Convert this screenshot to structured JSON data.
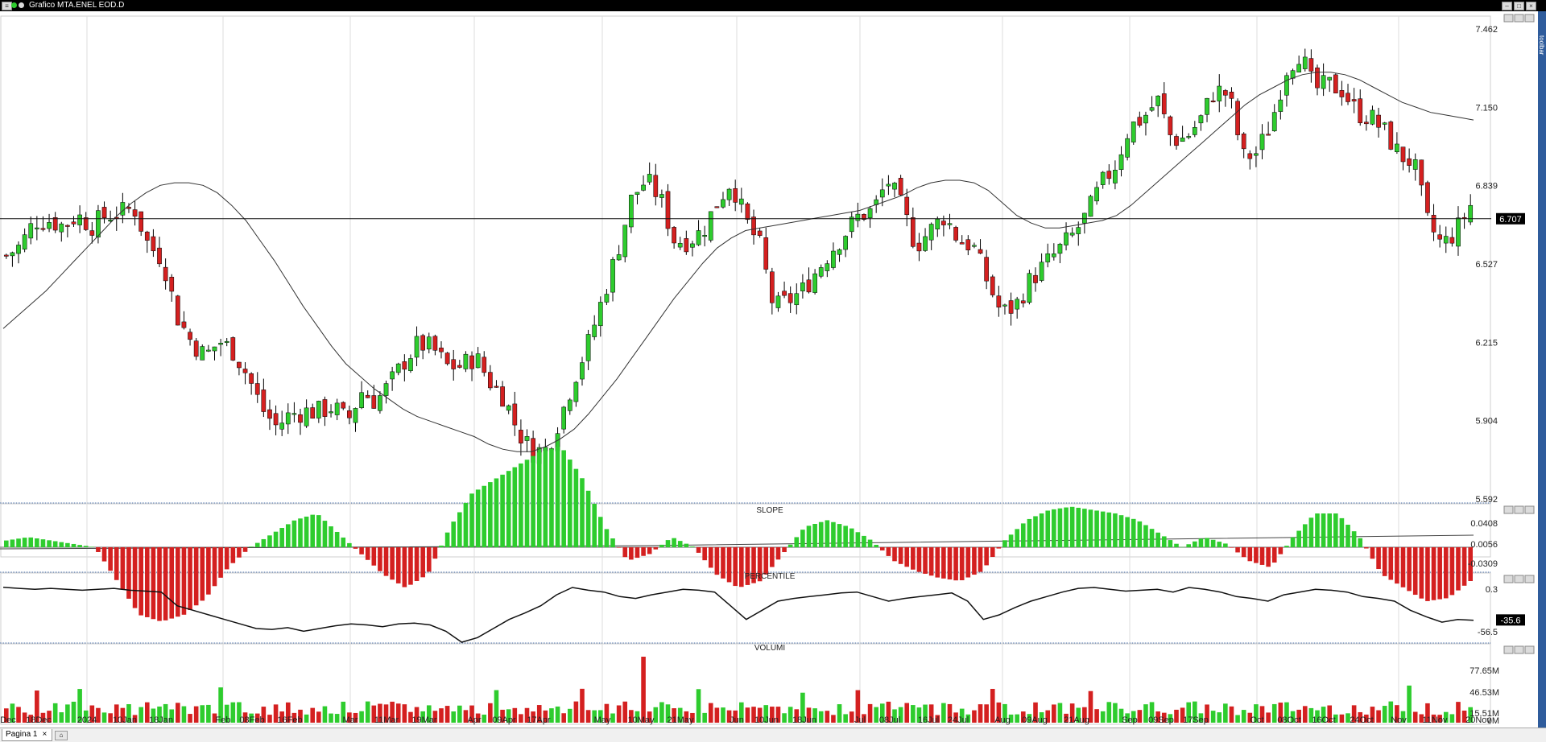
{
  "window": {
    "title": "Grafico MTA.ENEL EOD.D",
    "toolbar_label": "toolbar"
  },
  "panels": {
    "slope": {
      "label": "SLOPE",
      "ticks": [
        "0.0408",
        "0.0056",
        "-0.0309"
      ]
    },
    "percentile": {
      "label": "PERCENTILE",
      "ticks": [
        "0.3",
        "-35.6",
        "-56.5"
      ],
      "current": "-35.6"
    },
    "volume": {
      "label": "VOLUMI",
      "ticks": [
        "77.65M",
        "46.53M",
        "15.51M",
        "0M"
      ]
    }
  },
  "tabs": [
    {
      "label": "Pagina 1"
    }
  ],
  "chart_data": [
    {
      "type": "candlestick",
      "name": "MTA.ENEL EOD.D",
      "y_ticks": [
        7.462,
        7.15,
        6.839,
        6.527,
        6.215,
        5.904,
        5.592
      ],
      "ylim": [
        5.592,
        7.462
      ],
      "current_price": 6.707,
      "current_price_label": "6.707",
      "x_labels": [
        "Dec",
        "18Dec",
        "2024",
        "10Jan",
        "18Jan",
        "Feb",
        "08Feb",
        "16Feb",
        "Mar",
        "11Mar",
        "19Mar",
        "Apr",
        "09Apr",
        "17Apr",
        "May",
        "10May",
        "21May",
        "Jun",
        "10Jun",
        "18Jun",
        "Jul",
        "08Jul",
        "16Jul",
        "24Jul",
        "Aug",
        "09Aug",
        "21Aug",
        "Sep",
        "09Sep",
        "17Sep",
        "Oct",
        "08Oct",
        "16Oct",
        "24Oct",
        "Nov",
        "11Nov",
        "20Nov"
      ],
      "close_path": [
        6.56,
        6.6,
        6.7,
        6.7,
        6.68,
        6.72,
        6.68,
        6.72,
        6.73,
        6.75,
        6.6,
        6.55,
        6.32,
        6.22,
        6.16,
        6.22,
        6.18,
        6.08,
        5.95,
        5.88,
        5.93,
        5.94,
        5.94,
        5.96,
        5.9,
        6.02,
        5.98,
        6.05,
        6.14,
        6.21,
        6.19,
        6.12,
        6.12,
        6.16,
        6.06,
        6.0,
        5.86,
        5.78,
        5.79,
        5.92,
        6.08,
        6.22,
        6.4,
        6.58,
        6.79,
        6.86,
        6.79,
        6.62,
        6.62,
        6.66,
        6.77,
        6.86,
        6.7,
        6.6,
        6.35,
        6.38,
        6.42,
        6.5,
        6.58,
        6.65,
        6.72,
        6.74,
        6.86,
        6.75,
        6.6,
        6.66,
        6.72,
        6.62,
        6.6,
        6.46,
        6.33,
        6.36,
        6.46,
        6.52,
        6.58,
        6.64,
        6.72,
        6.84,
        6.92,
        7.07,
        7.11,
        7.18,
        7.02,
        7.03,
        7.1,
        7.22,
        7.2,
        6.95,
        6.97,
        7.09,
        7.3,
        7.37,
        7.22,
        7.24,
        7.22,
        7.13,
        7.11,
        7.05,
        6.96,
        6.93,
        6.69,
        6.6,
        6.66,
        6.76
      ],
      "ma_path": [
        6.27,
        6.32,
        6.37,
        6.42,
        6.48,
        6.54,
        6.6,
        6.66,
        6.72,
        6.77,
        6.81,
        6.84,
        6.85,
        6.85,
        6.84,
        6.81,
        6.76,
        6.7,
        6.62,
        6.54,
        6.45,
        6.36,
        6.28,
        6.2,
        6.13,
        6.08,
        6.03,
        5.99,
        5.95,
        5.92,
        5.9,
        5.88,
        5.86,
        5.84,
        5.81,
        5.79,
        5.78,
        5.78,
        5.8,
        5.83,
        5.87,
        5.93,
        6.0,
        6.07,
        6.15,
        6.23,
        6.31,
        6.39,
        6.46,
        6.53,
        6.59,
        6.63,
        6.66,
        6.67,
        6.68,
        6.69,
        6.7,
        6.71,
        6.72,
        6.73,
        6.74,
        6.76,
        6.78,
        6.8,
        6.83,
        6.85,
        6.86,
        6.86,
        6.85,
        6.82,
        6.77,
        6.72,
        6.69,
        6.67,
        6.67,
        6.68,
        6.69,
        6.7,
        6.72,
        6.76,
        6.81,
        6.86,
        6.91,
        6.96,
        7.01,
        7.06,
        7.11,
        7.16,
        7.2,
        7.23,
        7.26,
        7.28,
        7.29,
        7.29,
        7.28,
        7.26,
        7.23,
        7.2,
        7.17,
        7.15,
        7.13,
        7.12,
        7.11,
        7.1
      ],
      "candle_count": 240,
      "colors": {
        "up": "#2ecc2e",
        "down": "#d42020"
      }
    },
    {
      "type": "bar",
      "name": "SLOPE",
      "y_ticks": [
        0.0408,
        0.0056,
        -0.0309
      ],
      "values_path": [
        0.002,
        0.003,
        0.002,
        0.001,
        0.0,
        -0.01,
        -0.02,
        -0.022,
        -0.02,
        -0.015,
        -0.006,
        0.0,
        0.004,
        0.008,
        0.01,
        0.004,
        -0.002,
        -0.008,
        -0.012,
        -0.008,
        0.006,
        0.016,
        0.02,
        0.024,
        0.028,
        0.03,
        0.02,
        0.006,
        -0.004,
        -0.002,
        0.003,
        0.0,
        -0.008,
        -0.012,
        -0.01,
        -0.002,
        0.006,
        0.008,
        0.006,
        0.002,
        -0.004,
        -0.007,
        -0.009,
        -0.01,
        -0.007,
        0.002,
        0.008,
        0.011,
        0.012,
        0.011,
        0.01,
        0.008,
        0.004,
        0.0,
        0.003,
        0.001,
        -0.004,
        -0.006,
        0.003,
        0.01,
        0.01,
        0.003,
        -0.008,
        -0.012,
        -0.016,
        -0.015,
        -0.01
      ]
    },
    {
      "type": "line",
      "name": "PERCENTILE",
      "y_ticks": [
        0.3,
        -35.6,
        -56.5
      ],
      "current_value": -35.6,
      "values_path": [
        0.3,
        -1,
        -2,
        -1,
        -2,
        -3,
        -2,
        -1,
        -3,
        -4,
        -5,
        -20,
        -25,
        -30,
        -35,
        -40,
        -45,
        -46,
        -44,
        -48,
        -45,
        -42,
        -40,
        -41,
        -43,
        -40,
        -39,
        -41,
        -48,
        -60,
        -55,
        -45,
        -35,
        -28,
        -20,
        -8,
        0,
        -3,
        -5,
        -10,
        -12,
        -8,
        -5,
        -2,
        -3,
        -5,
        -20,
        -35,
        -25,
        -15,
        -12,
        -10,
        -8,
        -6,
        -5,
        -10,
        -15,
        -12,
        -10,
        -8,
        -6,
        -15,
        -35,
        -30,
        -22,
        -15,
        -10,
        -5,
        -1,
        0,
        -2,
        -4,
        -3,
        -2,
        -5,
        0,
        -2,
        -5,
        -10,
        -12,
        -15,
        -8,
        -5,
        -2,
        -3,
        -5,
        -10,
        -12,
        -15,
        -25,
        -32,
        -38,
        -35,
        -36
      ]
    },
    {
      "type": "bar",
      "name": "VOLUMI",
      "y_ticks": [
        "77.65M",
        "46.53M",
        "15.51M",
        "0M"
      ],
      "ylim": [
        0,
        77.65
      ],
      "avg_value_millions": 18,
      "peak_values_millions": [
        {
          "date": "10May",
          "value": 77.65
        }
      ]
    }
  ]
}
